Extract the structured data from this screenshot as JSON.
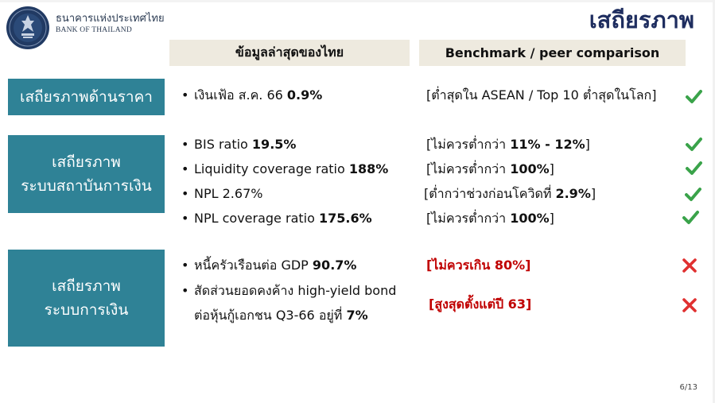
{
  "header": {
    "org_thai": "ธนาคารแห่งประเทศไทย",
    "org_en": "BANK OF THAILAND",
    "title": "เสถียรภาพ"
  },
  "columns": {
    "left": "ข้อมูลล่าสุดของไทย",
    "right": "Benchmark / peer comparison"
  },
  "sections": [
    {
      "category": [
        "เสถียรภาพด้านราคา"
      ],
      "rows": [
        {
          "text": "เงินเฟ้อ ส.ค. 66 ",
          "value": "0.9%",
          "bench_pre": "[ต่ำสุดใน ASEAN / Top 10 ต่ำสุดในโลก]",
          "bench_bold": "",
          "bench_post": "",
          "status": "check"
        }
      ]
    },
    {
      "category": [
        "เสถียรภาพ",
        "ระบบสถาบันการเงิน"
      ],
      "rows": [
        {
          "text": "BIS ratio ",
          "value": "19.5%",
          "bench_pre": "[ไม่ควรต่ำกว่า ",
          "bench_bold": "11% - 12%",
          "bench_post": "]",
          "status": "check"
        },
        {
          "text": "Liquidity coverage ratio ",
          "value": "188%",
          "bench_pre": "[ไม่ควรต่ำกว่า ",
          "bench_bold": "100%",
          "bench_post": "]",
          "status": "check"
        },
        {
          "text": "NPL 2.67%",
          "value": "",
          "bench_pre": "[ต่ำกว่าช่วงก่อนโควิดที่ ",
          "bench_bold": "2.9%",
          "bench_post": "]",
          "status": "check"
        },
        {
          "text": "NPL coverage ratio ",
          "value": "175.6%",
          "bench_pre": "[ไม่ควรต่ำกว่า ",
          "bench_bold": "100%",
          "bench_post": "]",
          "status": "check"
        }
      ]
    },
    {
      "category": [
        "เสถียรภาพ",
        "ระบบการเงิน"
      ],
      "rows": [
        {
          "text": "หนี้ครัวเรือนต่อ GDP ",
          "value": "90.7%",
          "bench_pre": "[ไม่ควรเกิน 80%]",
          "bench_bold": "",
          "bench_post": "",
          "status": "cross"
        },
        {
          "text": "สัดส่วนยอดคงค้าง high-yield bond",
          "text2": "ต่อหุ้นกู้เอกชน Q3-66 อยู่ที่ ",
          "value": "7%",
          "bench_pre": "[สูงสุดตั้งแต่ปี 63]",
          "bench_bold": "",
          "bench_post": "",
          "status": "cross"
        }
      ]
    }
  ],
  "colors": {
    "teal": "#2f8296",
    "navy": "#1e2d5f",
    "check": "#3aa34a",
    "cross": "#e03030",
    "warn_text": "#c00000",
    "header_bg": "#eeeadf"
  },
  "page": "6/13"
}
